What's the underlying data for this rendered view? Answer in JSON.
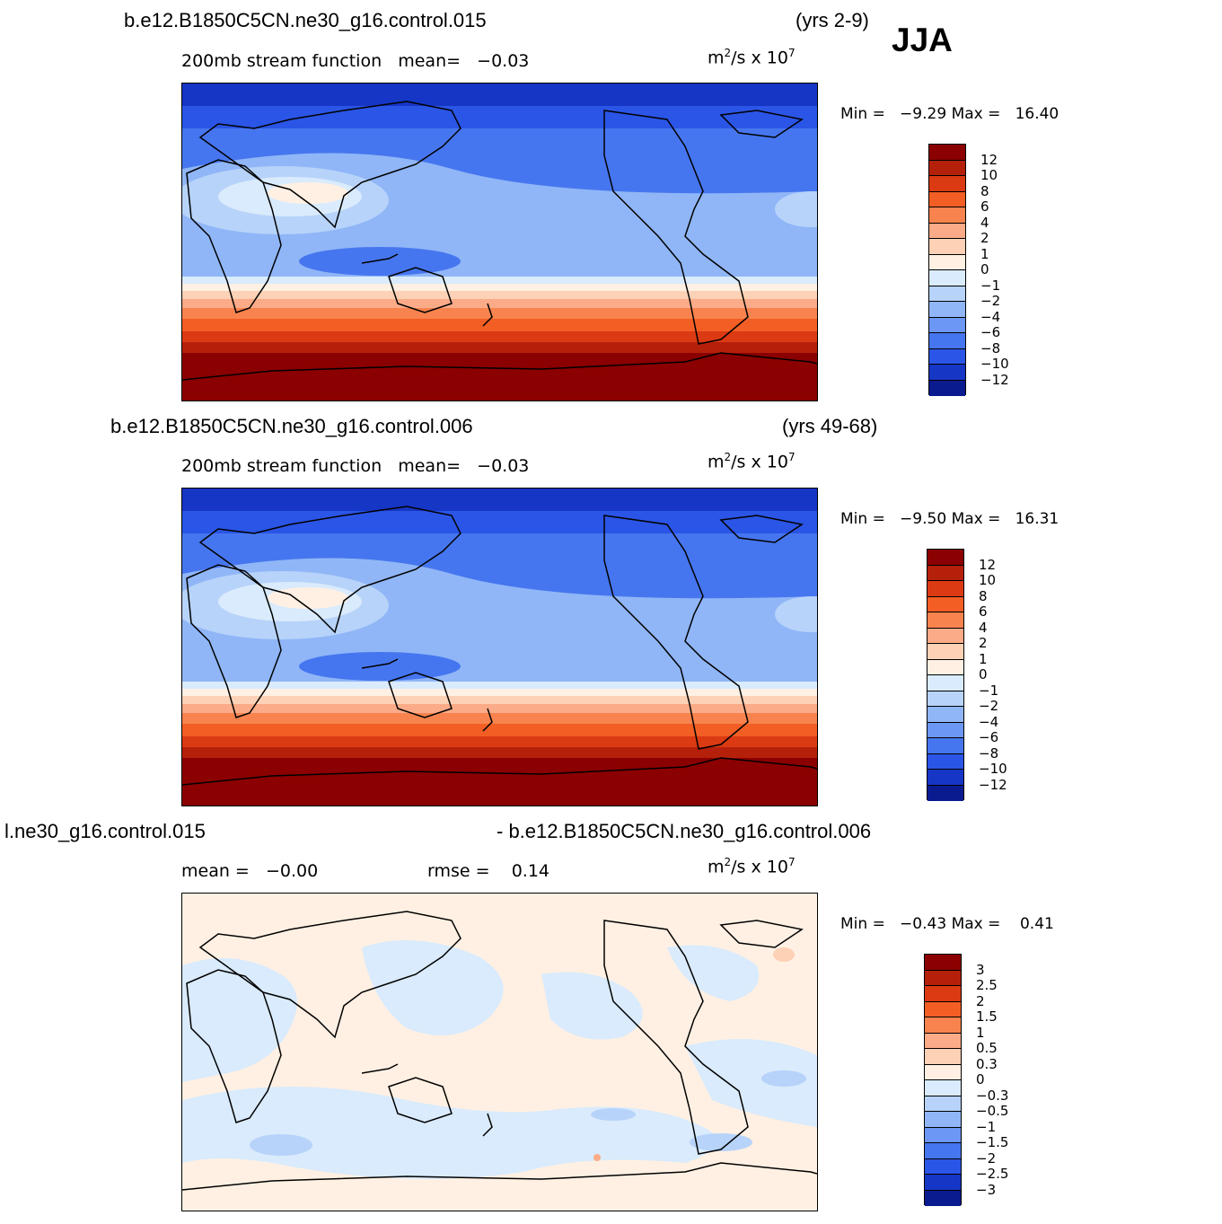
{
  "season": "JJA",
  "units": {
    "base": "m",
    "sup1": "2",
    "mid": "/s x 10",
    "sup2": "7"
  },
  "panels": [
    {
      "case": "b.e12.B1850C5CN.ne30_g16.control.015",
      "years": "(yrs 2-9)",
      "subtitle": "200mb stream function   mean=   −0.03",
      "min_label": "Min =",
      "min_value": "−9.29",
      "max_label": "Max =",
      "max_value": "16.40"
    },
    {
      "case": "b.e12.B1850C5CN.ne30_g16.control.006",
      "years": "(yrs 49-68)",
      "subtitle": "200mb stream function   mean=   −0.03",
      "min_label": "Min =",
      "min_value": "−9.50",
      "max_label": "Max =",
      "max_value": "16.31"
    },
    {
      "case_left": "l.ne30_g16.control.015",
      "case_right": "- b.e12.B1850C5CN.ne30_g16.control.006",
      "mean_text": "mean =   −0.00",
      "rmse_text": "rmse =    0.14",
      "min_label": "Min =",
      "min_value": "−0.43",
      "max_label": "Max =",
      "max_value": "0.41"
    }
  ],
  "legend_main": {
    "labels": [
      "12",
      "10",
      "8",
      "6",
      "4",
      "2",
      "1",
      "0",
      "−1",
      "−2",
      "−4",
      "−6",
      "−8",
      "−10",
      "−12"
    ],
    "colors": [
      "#8b0000",
      "#b5200b",
      "#db3a13",
      "#f25e24",
      "#f8834e",
      "#fbab87",
      "#fdd1b5",
      "#fff0e3",
      "#d9ebfc",
      "#b7d3fa",
      "#90b6f7",
      "#6c97f4",
      "#4676ef",
      "#2a55e6",
      "#1636c6",
      "#0a1b8f"
    ]
  },
  "legend_diff": {
    "labels": [
      "3",
      "2.5",
      "2",
      "1.5",
      "1",
      "0.5",
      "0.3",
      "0",
      "−0.3",
      "−0.5",
      "−1",
      "−1.5",
      "−2",
      "−2.5",
      "−3"
    ],
    "colors": [
      "#8b0000",
      "#b5200b",
      "#db3a13",
      "#f25e24",
      "#f8834e",
      "#fbab87",
      "#fdd1b5",
      "#fff0e3",
      "#d9ebfc",
      "#b7d3fa",
      "#90b6f7",
      "#6c97f4",
      "#4676ef",
      "#2a55e6",
      "#1636c6",
      "#0a1b8f"
    ]
  }
}
